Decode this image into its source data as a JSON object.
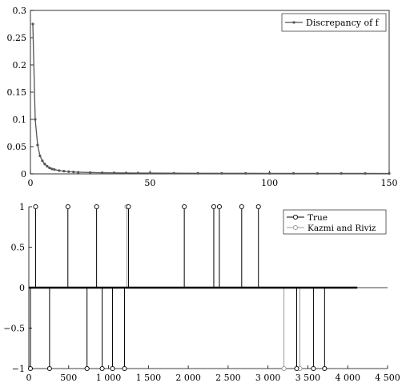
{
  "chart_data": [
    {
      "type": "line",
      "title": "",
      "xlabel": "",
      "ylabel": "",
      "xlim": [
        0,
        150
      ],
      "ylim": [
        0,
        0.3
      ],
      "xticks": [
        0,
        50,
        100,
        150
      ],
      "yticks": [
        0,
        0.05,
        0.1,
        0.15,
        0.2,
        0.25,
        0.3
      ],
      "xtick_labels": [
        "0",
        "50",
        "100",
        "150"
      ],
      "ytick_labels": [
        "0",
        "0.05",
        "0.1",
        "0.15",
        "0.2",
        "0.25",
        "0.3"
      ],
      "grid": false,
      "legend_position": "top-right",
      "series": [
        {
          "name": "Discrepancy of f",
          "color": "#555555",
          "x": [
            1,
            2,
            3,
            4,
            5,
            6,
            7,
            8,
            9,
            10,
            12,
            14,
            16,
            18,
            20,
            25,
            30,
            35,
            40,
            45,
            50,
            60,
            70,
            80,
            90,
            100,
            110,
            120,
            130,
            140,
            150
          ],
          "y": [
            0.275,
            0.1,
            0.053,
            0.033,
            0.024,
            0.018,
            0.014,
            0.011,
            0.009,
            0.008,
            0.006,
            0.005,
            0.004,
            0.0035,
            0.003,
            0.0025,
            0.002,
            0.0018,
            0.0016,
            0.0015,
            0.0014,
            0.0012,
            0.0011,
            0.001,
            0.001,
            0.0009,
            0.0009,
            0.0008,
            0.0008,
            0.0008,
            0.0007
          ]
        }
      ]
    },
    {
      "type": "scatter",
      "title": "",
      "xlabel": "",
      "ylabel": "",
      "xlim": [
        0,
        4500
      ],
      "ylim": [
        -1,
        1
      ],
      "xticks": [
        0,
        500,
        1000,
        1500,
        2000,
        2500,
        3000,
        3500,
        4000,
        4500
      ],
      "yticks": [
        -1,
        -0.5,
        0,
        0.5,
        1
      ],
      "xtick_labels": [
        "0",
        "500",
        "1 000",
        "1 500",
        "2 000",
        "2 500",
        "3 000",
        "3 500",
        "4 000",
        "4 500"
      ],
      "ytick_labels": [
        "−1",
        "−0.5",
        "0",
        "0.5",
        "1"
      ],
      "grid": false,
      "legend_position": "top-right",
      "baseline_extent": [
        0,
        4120
      ],
      "series": [
        {
          "name": "True",
          "color": "#000000",
          "x": [
            85,
            490,
            850,
            1250,
            1950,
            2320,
            2390,
            2670,
            2880,
            260,
            730,
            920,
            1050,
            1200,
            3360,
            3570,
            3710,
            20
          ],
          "y": [
            1,
            1,
            1,
            1,
            1,
            1,
            1,
            1,
            1,
            -1,
            -1,
            -1,
            -1,
            -1,
            -1,
            -1,
            -1,
            -1
          ]
        },
        {
          "name": "Kazmi and Riviz",
          "color": "#999999",
          "x": [
            1230,
            3200,
            3400
          ],
          "y": [
            1,
            -1,
            -1
          ]
        }
      ]
    }
  ]
}
